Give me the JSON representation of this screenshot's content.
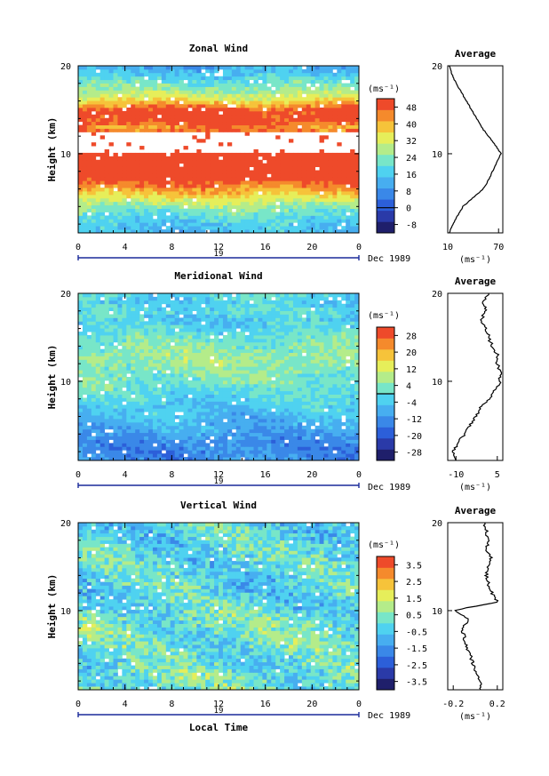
{
  "figure": {
    "date_label": "Dec 1989",
    "day_label": "19",
    "xlabel_bottom": "Local Time",
    "ylabel": "Height (km)",
    "x_ticks": [
      "0",
      "4",
      "8",
      "12",
      "16",
      "20",
      "0"
    ],
    "y_ticks": [
      "20",
      "10"
    ],
    "colorbar_unit": "(ms⁻¹)",
    "avg_unit": "(ms⁻¹)",
    "avg_title": "Average"
  },
  "colormap": [
    "#1f1f6b",
    "#2a3aa8",
    "#2c5fd9",
    "#3a88e8",
    "#47aef0",
    "#4fd2f0",
    "#78e6c8",
    "#b4ec8a",
    "#e6ee5a",
    "#f6c33a",
    "#f58a2c",
    "#ee4a2a"
  ],
  "chart_data": [
    {
      "type": "heatmap",
      "title": "Zonal Wind",
      "xlabel": "",
      "ylabel": "Height (km)",
      "x_range": [
        0,
        24
      ],
      "y_range": [
        1,
        20
      ],
      "unit": "ms⁻¹",
      "colorbar": {
        "ticks": [
          48,
          40,
          32,
          24,
          16,
          8,
          0,
          -8
        ],
        "range": [
          -12,
          52
        ],
        "contour_at": 0
      },
      "profile_by_height": {
        "heights": [
          1,
          2,
          3,
          4,
          5,
          6,
          7,
          8,
          9,
          10,
          11,
          12,
          13,
          14,
          15,
          16,
          17,
          18,
          19,
          20
        ],
        "values": [
          14,
          16,
          20,
          26,
          34,
          42,
          50,
          58,
          63,
          70,
          60,
          50,
          44,
          52,
          50,
          36,
          28,
          22,
          16,
          12
        ]
      },
      "missing_band_km": [
        10.2,
        12.6
      ],
      "average_profile": {
        "title": "Average",
        "xlabel": "(ms⁻¹)",
        "x_ticks": [
          "10",
          "70"
        ],
        "xlim": [
          10,
          75
        ],
        "heights": [
          1,
          2,
          3,
          4,
          5,
          6,
          7,
          8,
          9,
          10,
          11,
          12,
          13,
          14,
          15,
          16,
          17,
          18,
          19,
          20
        ],
        "values": [
          12,
          16,
          22,
          28,
          40,
          52,
          58,
          63,
          68,
          73,
          66,
          58,
          50,
          44,
          38,
          32,
          26,
          20,
          15,
          12
        ]
      }
    },
    {
      "type": "heatmap",
      "title": "Meridional Wind",
      "xlabel": "",
      "ylabel": "Height (km)",
      "x_range": [
        0,
        24
      ],
      "y_range": [
        1,
        20
      ],
      "unit": "ms⁻¹",
      "colorbar": {
        "ticks": [
          28,
          20,
          12,
          4,
          -4,
          -12,
          -20,
          -28
        ],
        "range": [
          -32,
          32
        ],
        "contour_at": 0
      },
      "profile_by_height": {
        "heights": [
          1,
          2,
          3,
          4,
          5,
          6,
          7,
          8,
          9,
          10,
          11,
          12,
          13,
          14,
          15,
          16,
          17,
          18,
          19,
          20
        ],
        "values": [
          -12,
          -14,
          -12,
          -10,
          -8,
          -6,
          -4,
          -2,
          0,
          3,
          4,
          6,
          6,
          4,
          2,
          -2,
          -4,
          0,
          -4,
          0
        ]
      },
      "missing_band_km": [],
      "average_profile": {
        "title": "Average",
        "xlabel": "(ms⁻¹)",
        "x_ticks": [
          "-10",
          "5"
        ],
        "xlim": [
          -13,
          7
        ],
        "heights": [
          1,
          2,
          3,
          4,
          5,
          6,
          7,
          8,
          9,
          10,
          11,
          12,
          13,
          14,
          15,
          16,
          17,
          18,
          19,
          20
        ],
        "values": [
          -10,
          -11,
          -9,
          -7,
          -5,
          -3,
          -1,
          2,
          4,
          6,
          6,
          5,
          5,
          3,
          2,
          1,
          -1,
          1,
          0,
          2
        ]
      }
    },
    {
      "type": "heatmap",
      "title": "Vertical Wind",
      "xlabel": "Local Time",
      "ylabel": "Height (km)",
      "x_range": [
        0,
        24
      ],
      "y_range": [
        1,
        20
      ],
      "unit": "ms⁻¹",
      "colorbar": {
        "ticks": [
          3.5,
          2.5,
          1.5,
          0.5,
          -0.5,
          -1.5,
          -2.5,
          -3.5
        ],
        "range": [
          -4,
          4
        ],
        "contour_at": null
      },
      "profile_by_height": {
        "heights": [
          1,
          2,
          3,
          4,
          5,
          6,
          7,
          8,
          9,
          10,
          11,
          12,
          13,
          14,
          15,
          16,
          17,
          18,
          19,
          20
        ],
        "values": [
          0.3,
          0.2,
          0.1,
          0.0,
          -0.1,
          0.1,
          0.2,
          0.3,
          0.2,
          0.0,
          -0.2,
          -0.3,
          -0.2,
          -0.3,
          -0.1,
          -0.2,
          -0.1,
          -0.2,
          -0.3,
          -0.2
        ]
      },
      "missing_band_km": [],
      "average_profile": {
        "title": "Average",
        "xlabel": "(ms⁻¹)",
        "x_ticks": [
          "-0.2",
          "0.2"
        ],
        "xlim": [
          -0.25,
          0.25
        ],
        "heights": [
          1,
          2,
          3,
          4,
          5,
          6,
          7,
          8,
          9,
          10,
          11,
          12,
          13,
          14,
          15,
          16,
          17,
          18,
          19,
          20
        ],
        "values": [
          0.05,
          0.04,
          0.0,
          -0.02,
          -0.05,
          -0.08,
          -0.1,
          -0.12,
          -0.05,
          -0.2,
          0.2,
          0.15,
          0.12,
          0.1,
          0.12,
          0.14,
          0.1,
          0.12,
          0.1,
          0.08
        ]
      }
    }
  ]
}
